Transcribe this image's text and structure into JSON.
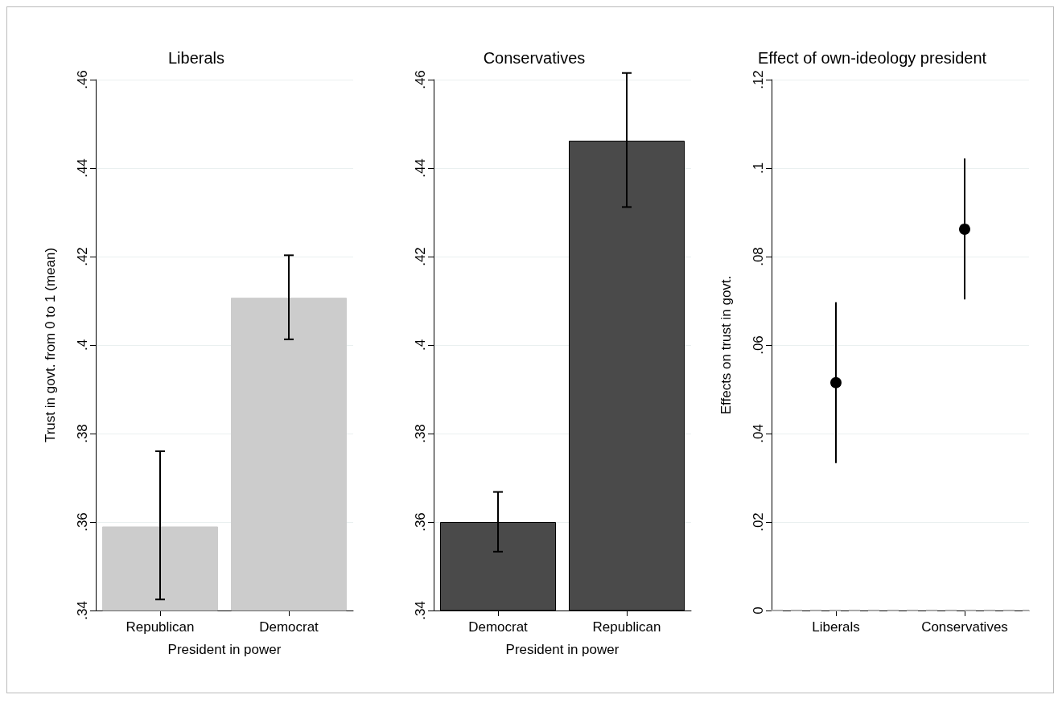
{
  "chart_data": [
    {
      "type": "bar",
      "title": "Liberals",
      "xlabel": "President in power",
      "ylabel": "Trust in govt. from 0 to 1 (mean)",
      "categories": [
        "Republican",
        "Democrat"
      ],
      "series": [
        {
          "color": "#cccccc",
          "values": [
            0.359,
            0.4107
          ],
          "errors": [
            [
              0.3425,
              0.376
            ],
            [
              0.4013,
              0.4203
            ]
          ]
        }
      ],
      "ylim": [
        0.34,
        0.46
      ],
      "yticks": [
        {
          "value": 0.34,
          "label": ".34"
        },
        {
          "value": 0.36,
          "label": ".36"
        },
        {
          "value": 0.38,
          "label": ".38"
        },
        {
          "value": 0.4,
          "label": ".4"
        },
        {
          "value": 0.42,
          "label": ".42"
        },
        {
          "value": 0.44,
          "label": ".44"
        },
        {
          "value": 0.46,
          "label": ".46"
        }
      ],
      "grid": "y"
    },
    {
      "type": "bar",
      "title": "Conservatives",
      "xlabel": "President in power",
      "categories": [
        "Democrat",
        "Republican"
      ],
      "series": [
        {
          "color": "#4a4a4a",
          "values": [
            0.36,
            0.4462
          ],
          "errors": [
            [
              0.3533,
              0.3668
            ],
            [
              0.4312,
              0.4615
            ]
          ]
        }
      ],
      "ylim": [
        0.34,
        0.46
      ],
      "yticks": [
        {
          "value": 0.34,
          "label": ".34"
        },
        {
          "value": 0.36,
          "label": ".36"
        },
        {
          "value": 0.38,
          "label": ".38"
        },
        {
          "value": 0.4,
          "label": ".4"
        },
        {
          "value": 0.42,
          "label": ".42"
        },
        {
          "value": 0.44,
          "label": ".44"
        },
        {
          "value": 0.46,
          "label": ".46"
        }
      ],
      "grid": "y"
    },
    {
      "type": "scatter",
      "title": "Effect of own-ideology president",
      "ylabel": "Effects on trust in govt.",
      "categories": [
        "Liberals",
        "Conservatives"
      ],
      "series": [
        {
          "color": "#000000",
          "values": [
            0.0515,
            0.0862
          ],
          "errors": [
            [
              0.0333,
              0.0697
            ],
            [
              0.0703,
              0.1022
            ]
          ]
        }
      ],
      "ylim": [
        0,
        0.12
      ],
      "yticks": [
        0,
        {
          "value": 0.02,
          "label": ".02"
        },
        {
          "value": 0.04,
          "label": ".04"
        },
        {
          "value": 0.06,
          "label": ".06"
        },
        {
          "value": 0.08,
          "label": ".08"
        },
        {
          "value": 0.1,
          "label": ".1"
        },
        {
          "value": 0.12,
          "label": ".12"
        }
      ],
      "ref_lines": [
        {
          "axis": "y",
          "value": 0,
          "color": "#aaaaaa",
          "line_style": "dashed"
        }
      ],
      "marker": "circle",
      "grid": "y"
    }
  ]
}
